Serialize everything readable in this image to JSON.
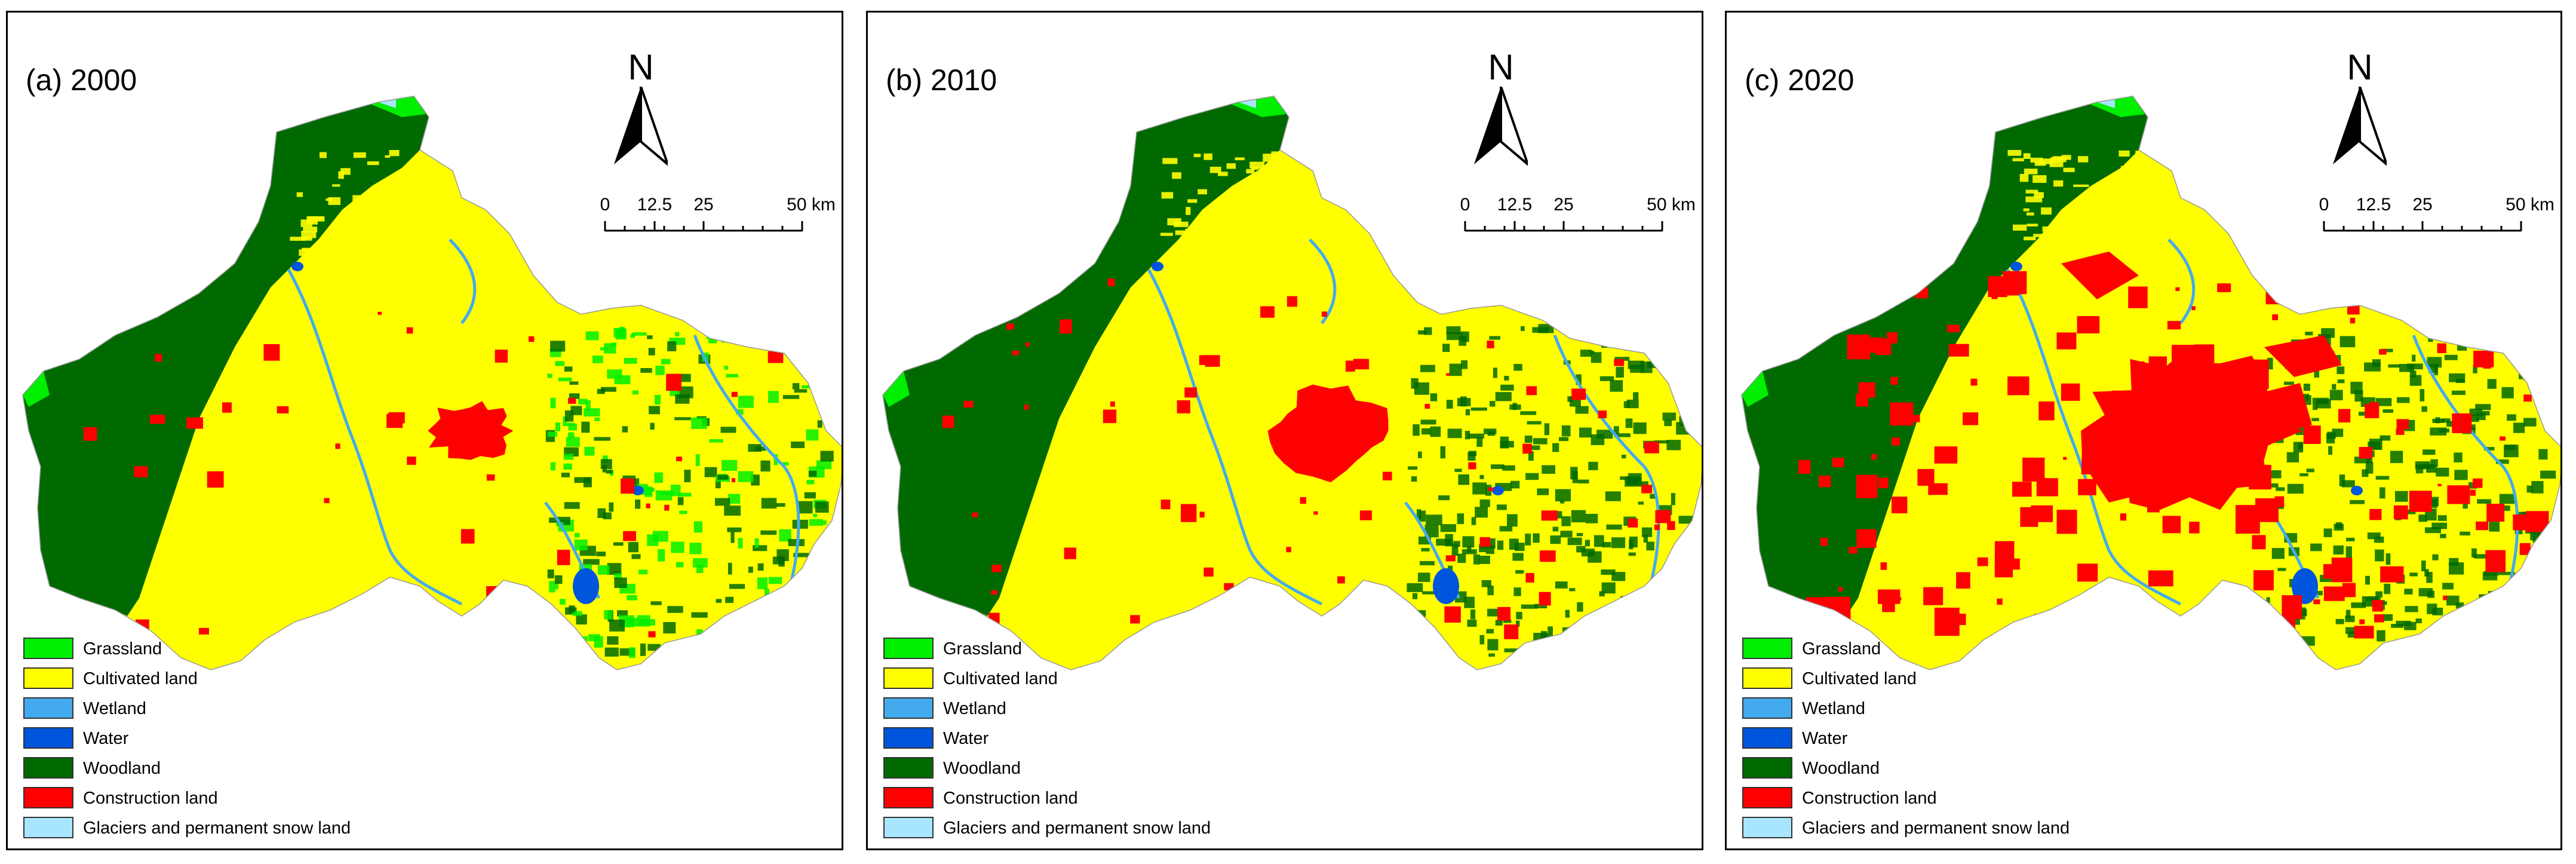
{
  "colors": {
    "grassland": "#00ee00",
    "cultivated": "#ffff00",
    "wetland": "#44aaee",
    "water": "#0055dd",
    "woodland": "#006a00",
    "construction": "#ff0000",
    "glacier": "#a8e6ff"
  },
  "panels": [
    {
      "title": "(a) 2000",
      "urban_level": 1
    },
    {
      "title": "(b) 2010",
      "urban_level": 2
    },
    {
      "title": "(c) 2020",
      "urban_level": 3
    }
  ],
  "north_arrow": {
    "letter": "N"
  },
  "scale_bar": {
    "ticks": [
      "0",
      "12.5",
      "25",
      "50"
    ],
    "unit": "km"
  },
  "legend": [
    {
      "label": "Grassland",
      "color_key": "grassland"
    },
    {
      "label": "Cultivated land",
      "color_key": "cultivated"
    },
    {
      "label": "Wetland",
      "color_key": "wetland"
    },
    {
      "label": "Water",
      "color_key": "water"
    },
    {
      "label": "Woodland",
      "color_key": "woodland"
    },
    {
      "label": "Construction land",
      "color_key": "construction"
    },
    {
      "label": "Glaciers and permanent snow land",
      "color_key": "glacier"
    }
  ]
}
